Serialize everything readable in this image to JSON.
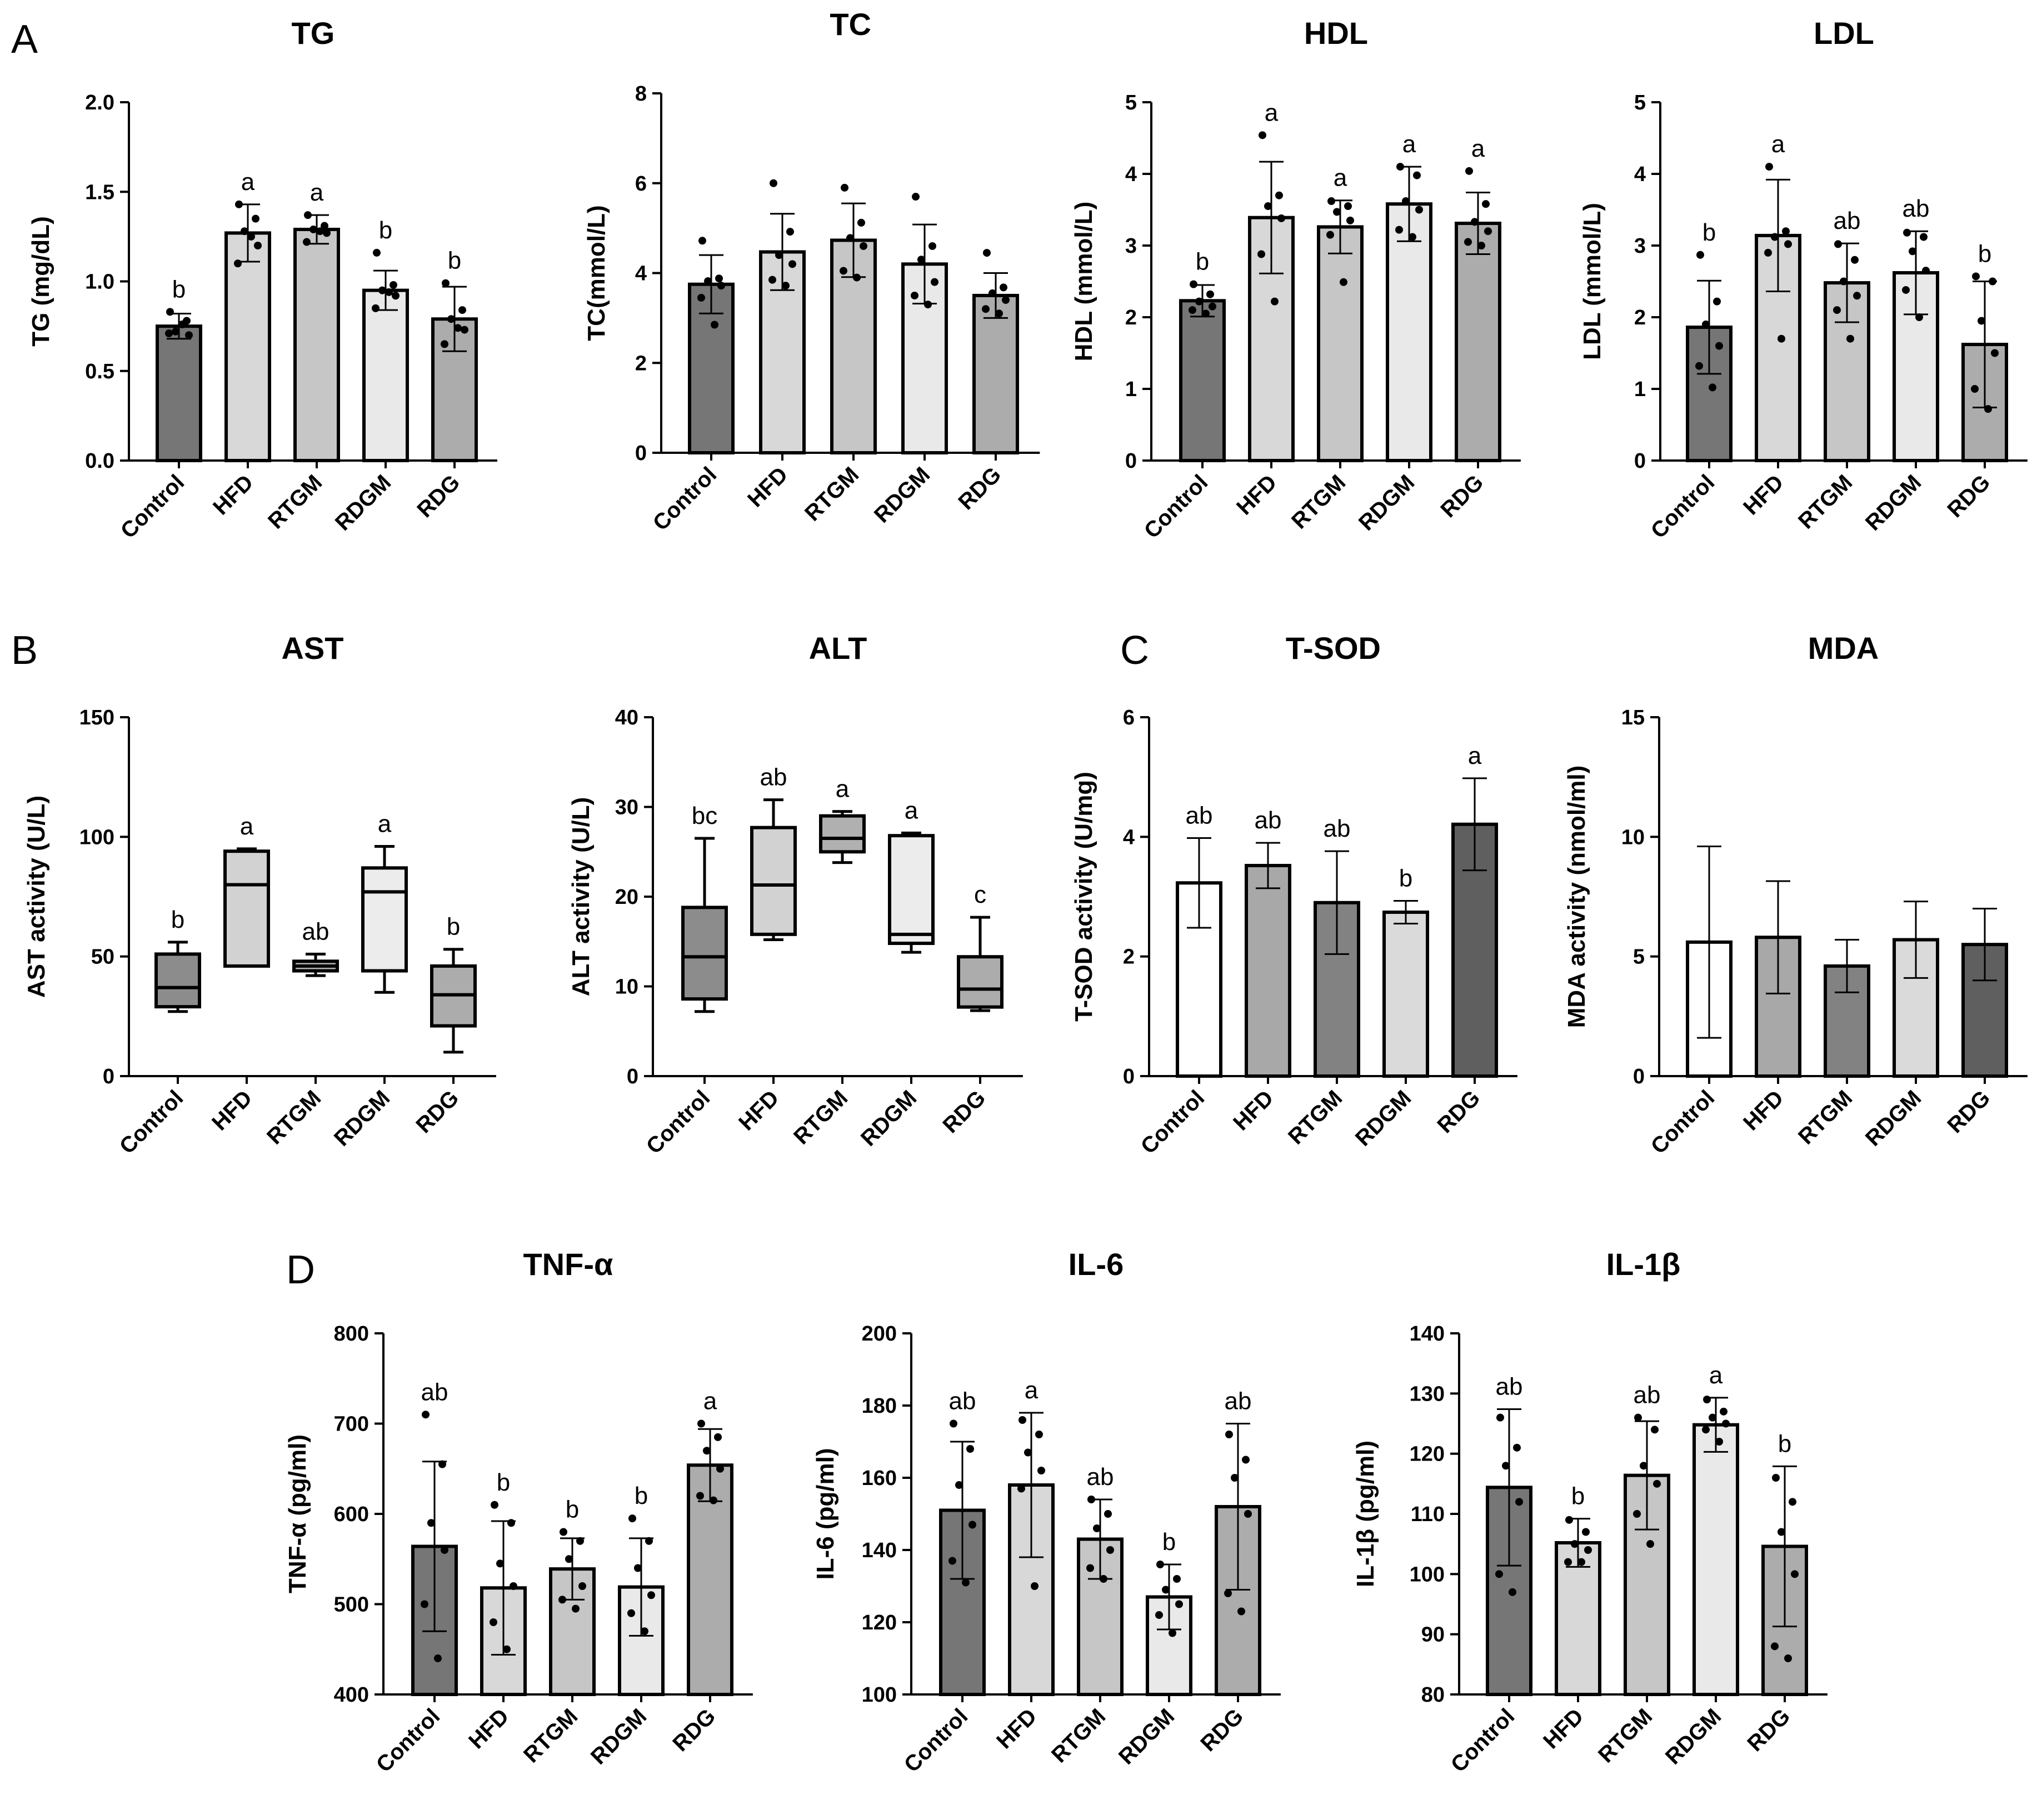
{
  "figure": {
    "panel_labels": [
      "A",
      "B",
      "C",
      "D"
    ]
  },
  "chart_data": [
    {
      "id": "tg",
      "panel": "A",
      "type": "bar",
      "title": "TG",
      "ylabel": "TG (mg/dL)",
      "categories": [
        "Control",
        "HFD",
        "RTGM",
        "RDGM",
        "RDG"
      ],
      "yticks": [
        0.0,
        0.5,
        1.0,
        1.5,
        2.0
      ],
      "tick_labels": [
        "0.0",
        "0.5",
        "1.0",
        "1.5",
        "2.0"
      ],
      "ylim": [
        0,
        2.0
      ],
      "values": [
        0.75,
        1.27,
        1.29,
        0.95,
        0.79
      ],
      "errors": [
        0.07,
        0.16,
        0.08,
        0.11,
        0.18
      ],
      "points": [
        [
          0.83,
          0.78,
          0.72,
          0.7,
          0.71,
          0.76
        ],
        [
          1.43,
          1.35,
          1.28,
          1.2,
          1.1,
          1.25
        ],
        [
          1.37,
          1.31,
          1.29,
          1.27,
          1.22,
          1.28
        ],
        [
          1.16,
          0.98,
          0.95,
          0.92,
          0.85,
          0.94
        ],
        [
          0.99,
          0.84,
          0.79,
          0.73,
          0.65,
          0.74
        ]
      ],
      "letters": [
        "b",
        "a",
        "a",
        "b",
        "b"
      ],
      "colors": [
        "#767676",
        "#d8d8d8",
        "#c6c6c6",
        "#e9e9e9",
        "#acacac"
      ]
    },
    {
      "id": "tc",
      "panel": "",
      "type": "bar",
      "title": "TC",
      "ylabel": "TC(mmol/L)",
      "categories": [
        "Control",
        "HFD",
        "RTGM",
        "RDGM",
        "RDG"
      ],
      "yticks": [
        0,
        2,
        4,
        6,
        8
      ],
      "tick_labels": [
        "0",
        "2",
        "4",
        "6",
        "8"
      ],
      "ylim": [
        0,
        8
      ],
      "values": [
        3.75,
        4.47,
        4.73,
        4.2,
        3.5
      ],
      "errors": [
        0.65,
        0.85,
        0.82,
        0.88,
        0.5
      ],
      "points": [
        [
          4.72,
          3.88,
          3.82,
          3.72,
          3.45,
          2.85
        ],
        [
          6.0,
          4.92,
          4.4,
          4.2,
          3.85,
          3.72
        ],
        [
          5.9,
          5.12,
          4.78,
          4.6,
          4.05,
          3.9
        ],
        [
          5.7,
          4.6,
          4.3,
          3.8,
          3.5,
          3.3
        ],
        [
          4.45,
          3.68,
          3.55,
          3.4,
          3.2,
          3.1
        ]
      ],
      "letters": [
        "",
        "",
        "",
        "",
        ""
      ],
      "colors": [
        "#767676",
        "#d8d8d8",
        "#c6c6c6",
        "#e9e9e9",
        "#acacac"
      ]
    },
    {
      "id": "hdl",
      "panel": "",
      "type": "bar",
      "title": "HDL",
      "ylabel": "HDL (mmol/L)",
      "categories": [
        "Control",
        "HFD",
        "RTGM",
        "RDGM",
        "RDG"
      ],
      "yticks": [
        0,
        1,
        2,
        3,
        4,
        5
      ],
      "tick_labels": [
        "0",
        "1",
        "2",
        "3",
        "4",
        "5"
      ],
      "ylim": [
        0,
        5
      ],
      "values": [
        2.23,
        3.39,
        3.26,
        3.58,
        3.31
      ],
      "errors": [
        0.22,
        0.78,
        0.37,
        0.52,
        0.43
      ],
      "points": [
        [
          2.46,
          2.32,
          2.22,
          2.15,
          2.1,
          2.05
        ],
        [
          4.54,
          3.7,
          3.55,
          3.38,
          2.88,
          2.22
        ],
        [
          3.62,
          3.55,
          3.47,
          3.35,
          3.15,
          2.49
        ],
        [
          4.1,
          3.98,
          3.62,
          3.5,
          3.22,
          3.12
        ],
        [
          4.04,
          3.58,
          3.33,
          3.2,
          3.05,
          3.0
        ]
      ],
      "letters": [
        "b",
        "a",
        "a",
        "a",
        "a"
      ],
      "colors": [
        "#767676",
        "#d8d8d8",
        "#c6c6c6",
        "#e9e9e9",
        "#acacac"
      ]
    },
    {
      "id": "ldl",
      "panel": "",
      "type": "bar",
      "title": "LDL",
      "ylabel": "LDL (mmol/L)",
      "categories": [
        "Control",
        "HFD",
        "RTGM",
        "RDGM",
        "RDG"
      ],
      "yticks": [
        0,
        1,
        2,
        3,
        4,
        5
      ],
      "tick_labels": [
        "0",
        "1",
        "2",
        "3",
        "4",
        "5"
      ],
      "ylim": [
        0,
        5
      ],
      "values": [
        1.86,
        3.14,
        2.48,
        2.62,
        1.62
      ],
      "errors": [
        0.65,
        0.78,
        0.55,
        0.58,
        0.88
      ],
      "points": [
        [
          2.87,
          2.22,
          1.9,
          1.6,
          1.32,
          1.02
        ],
        [
          4.1,
          3.2,
          3.12,
          3.02,
          2.9,
          1.7
        ],
        [
          3.02,
          2.8,
          2.5,
          2.3,
          2.1,
          1.7
        ],
        [
          3.18,
          3.12,
          2.92,
          2.65,
          2.38,
          2.0
        ],
        [
          2.57,
          2.5,
          1.95,
          1.5,
          1.0,
          0.72
        ]
      ],
      "letters": [
        "b",
        "a",
        "ab",
        "ab",
        "b"
      ],
      "colors": [
        "#767676",
        "#d8d8d8",
        "#c6c6c6",
        "#e9e9e9",
        "#acacac"
      ]
    },
    {
      "id": "ast",
      "panel": "B",
      "type": "box",
      "title": "AST",
      "ylabel": "AST activity (U/L)",
      "categories": [
        "Control",
        "HFD",
        "RTGM",
        "RDGM",
        "RDG"
      ],
      "yticks": [
        0,
        50,
        100,
        150
      ],
      "tick_labels": [
        "0",
        "50",
        "100",
        "150"
      ],
      "ylim": [
        0,
        150
      ],
      "boxes": [
        {
          "min": 27,
          "q1": 29,
          "median": 37,
          "q3": 51,
          "max": 56
        },
        {
          "min": 46,
          "q1": 46,
          "median": 80,
          "q3": 94,
          "max": 95
        },
        {
          "min": 42,
          "q1": 44,
          "median": 46,
          "q3": 48,
          "max": 51
        },
        {
          "min": 35,
          "q1": 44,
          "median": 77,
          "q3": 87,
          "max": 96
        },
        {
          "min": 10,
          "q1": 21,
          "median": 34,
          "q3": 46,
          "max": 53
        }
      ],
      "letters": [
        "b",
        "a",
        "ab",
        "a",
        "b"
      ],
      "colors": [
        "#8c8c8c",
        "#d2d2d2",
        "#b0b0b0",
        "#ececec",
        "#acacac"
      ]
    },
    {
      "id": "alt",
      "panel": "",
      "type": "box",
      "title": "ALT",
      "ylabel": "ALT activity (U/L)",
      "categories": [
        "Control",
        "HFD",
        "RTGM",
        "RDGM",
        "RDG"
      ],
      "yticks": [
        0,
        10,
        20,
        30,
        40
      ],
      "tick_labels": [
        "0",
        "10",
        "20",
        "30",
        "40"
      ],
      "ylim": [
        0,
        40
      ],
      "boxes": [
        {
          "min": 7.2,
          "q1": 8.6,
          "median": 13.3,
          "q3": 18.8,
          "max": 26.5
        },
        {
          "min": 15.2,
          "q1": 15.8,
          "median": 21.3,
          "q3": 27.7,
          "max": 30.8
        },
        {
          "min": 23.8,
          "q1": 25.0,
          "median": 26.5,
          "q3": 29.0,
          "max": 29.5
        },
        {
          "min": 13.8,
          "q1": 14.8,
          "median": 15.8,
          "q3": 26.8,
          "max": 27.1
        },
        {
          "min": 7.3,
          "q1": 7.7,
          "median": 9.7,
          "q3": 13.3,
          "max": 17.7
        }
      ],
      "letters": [
        "bc",
        "ab",
        "a",
        "a",
        "c"
      ],
      "colors": [
        "#8c8c8c",
        "#d2d2d2",
        "#b0b0b0",
        "#ececec",
        "#acacac"
      ]
    },
    {
      "id": "tsod",
      "panel": "C",
      "type": "bar",
      "title": "T-SOD",
      "ylabel": "T-SOD activity (U/mg)",
      "categories": [
        "Control",
        "HFD",
        "RTGM",
        "RDGM",
        "RDG"
      ],
      "yticks": [
        0,
        2,
        4,
        6
      ],
      "tick_labels": [
        "0",
        "2",
        "4",
        "6"
      ],
      "ylim": [
        0,
        6
      ],
      "values": [
        3.23,
        3.52,
        2.9,
        2.74,
        4.21
      ],
      "errors": [
        0.75,
        0.38,
        0.86,
        0.19,
        0.77
      ],
      "points": [],
      "letters": [
        "ab",
        "ab",
        "ab",
        "b",
        "a"
      ],
      "colors": [
        "#ffffff",
        "#a8a8a8",
        "#828282",
        "#dadada",
        "#5f5f5f"
      ]
    },
    {
      "id": "mda",
      "panel": "",
      "type": "bar",
      "title": "MDA",
      "ylabel": "MDA activity (nmol/ml)",
      "categories": [
        "Control",
        "HFD",
        "RTGM",
        "RDGM",
        "RDG"
      ],
      "yticks": [
        0,
        5,
        10,
        15
      ],
      "tick_labels": [
        "0",
        "5",
        "10",
        "15"
      ],
      "ylim": [
        0,
        15
      ],
      "values": [
        5.6,
        5.8,
        4.6,
        5.7,
        5.5
      ],
      "errors": [
        4.0,
        2.35,
        1.1,
        1.6,
        1.5
      ],
      "points": [],
      "letters": [
        "",
        "",
        "",
        "",
        ""
      ],
      "colors": [
        "#ffffff",
        "#a8a8a8",
        "#828282",
        "#dadada",
        "#5f5f5f"
      ]
    },
    {
      "id": "tnf",
      "panel": "D",
      "type": "bar",
      "title": "TNF-α",
      "ylabel": "TNF-α (pg/ml)",
      "categories": [
        "Control",
        "HFD",
        "RTGM",
        "RDGM",
        "RDG"
      ],
      "yticks": [
        400,
        500,
        600,
        700,
        800
      ],
      "tick_labels": [
        "400",
        "500",
        "600",
        "700",
        "800"
      ],
      "ylim": [
        400,
        800
      ],
      "values": [
        564,
        518,
        539,
        519,
        654
      ],
      "errors": [
        94,
        74,
        34,
        54,
        40
      ],
      "points": [
        [
          710,
          655,
          590,
          560,
          500,
          440
        ],
        [
          610,
          590,
          545,
          520,
          480,
          450
        ],
        [
          580,
          570,
          550,
          520,
          505,
          495
        ],
        [
          595,
          570,
          540,
          510,
          490,
          470
        ],
        [
          700,
          685,
          670,
          650,
          620,
          615
        ]
      ],
      "letters": [
        "ab",
        "b",
        "b",
        "b",
        "a"
      ],
      "colors": [
        "#767676",
        "#d8d8d8",
        "#c6c6c6",
        "#e9e9e9",
        "#acacac"
      ]
    },
    {
      "id": "il6",
      "panel": "",
      "type": "bar",
      "title": "IL-6",
      "ylabel": "IL-6 (pg/ml)",
      "categories": [
        "Control",
        "HFD",
        "RTGM",
        "RDGM",
        "RDG"
      ],
      "yticks": [
        100,
        120,
        140,
        160,
        180,
        200
      ],
      "tick_labels": [
        "100",
        "120",
        "140",
        "160",
        "180",
        "200"
      ],
      "ylim": [
        100,
        200
      ],
      "values": [
        151,
        158,
        143,
        127,
        152
      ],
      "errors": [
        19,
        20,
        11,
        9,
        23
      ],
      "points": [
        [
          175,
          168,
          158,
          147,
          137,
          131
        ],
        [
          176,
          172,
          167,
          162,
          157,
          130
        ],
        [
          154,
          150,
          146,
          140,
          135,
          132
        ],
        [
          136,
          132,
          129,
          125,
          122,
          117
        ],
        [
          172,
          165,
          160,
          150,
          128,
          123
        ]
      ],
      "letters": [
        "ab",
        "a",
        "ab",
        "b",
        "ab"
      ],
      "colors": [
        "#767676",
        "#d8d8d8",
        "#c6c6c6",
        "#e9e9e9",
        "#acacac"
      ]
    },
    {
      "id": "il1b",
      "panel": "",
      "type": "bar",
      "title": "IL-1β",
      "ylabel": "IL-1β (pg/ml)",
      "categories": [
        "Control",
        "HFD",
        "RTGM",
        "RDGM",
        "RDG"
      ],
      "yticks": [
        80,
        90,
        100,
        110,
        120,
        130,
        140
      ],
      "tick_labels": [
        "80",
        "90",
        "100",
        "110",
        "120",
        "130",
        "140"
      ],
      "ylim": [
        80,
        140
      ],
      "values": [
        114.4,
        105.2,
        116.4,
        124.8,
        104.6
      ],
      "errors": [
        13,
        4,
        9,
        4.5,
        13.3
      ],
      "points": [
        [
          126,
          121,
          118,
          112,
          100,
          97
        ],
        [
          109,
          107,
          105,
          104,
          102,
          102
        ],
        [
          126,
          124,
          118,
          115,
          110,
          105
        ],
        [
          129,
          127,
          126,
          125,
          124,
          122
        ],
        [
          116,
          112,
          107,
          100,
          88,
          86
        ]
      ],
      "letters": [
        "ab",
        "b",
        "ab",
        "a",
        "b"
      ],
      "colors": [
        "#767676",
        "#d8d8d8",
        "#c6c6c6",
        "#e9e9e9",
        "#acacac"
      ]
    }
  ]
}
